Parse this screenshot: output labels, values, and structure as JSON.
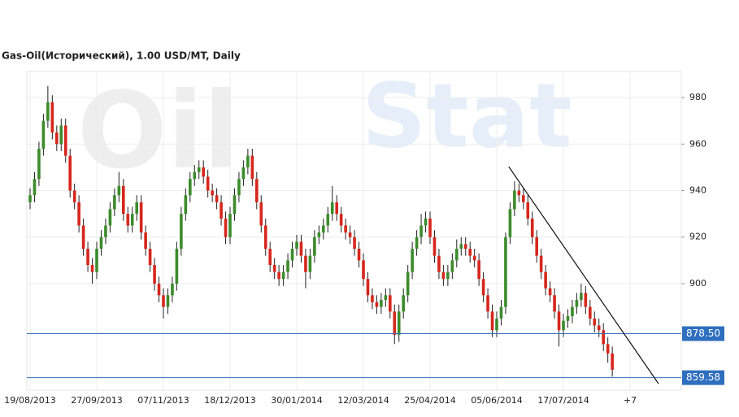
{
  "chart_data": {
    "type": "candlestick",
    "title": "Gas-Oil(Исторический), 1.00 USD/MT, Daily",
    "watermark": [
      "Oil",
      "Stat"
    ],
    "categories": [
      "19/08/2013",
      null,
      null,
      null,
      null,
      null,
      null,
      null,
      null,
      null,
      null,
      null,
      null,
      null,
      null,
      "27/09/2013",
      null,
      null,
      null,
      null,
      null,
      null,
      null,
      null,
      null,
      null,
      null,
      null,
      null,
      null,
      "07/11/2013",
      null,
      null,
      null,
      null,
      null,
      null,
      null,
      null,
      null,
      null,
      null,
      null,
      null,
      null,
      "18/12/2013",
      null,
      null,
      null,
      null,
      null,
      null,
      null,
      null,
      null,
      null,
      null,
      null,
      null,
      null,
      "30/01/2014",
      null,
      null,
      null,
      null,
      null,
      null,
      null,
      null,
      null,
      null,
      null,
      null,
      null,
      null,
      "12/03/2014",
      null,
      null,
      null,
      null,
      null,
      null,
      null,
      null,
      null,
      null,
      null,
      null,
      null,
      null,
      "25/04/2014",
      null,
      null,
      null,
      null,
      null,
      null,
      null,
      null,
      null,
      null,
      null,
      null,
      null,
      null,
      "05/06/2014",
      null,
      null,
      null,
      null,
      null,
      null,
      null,
      null,
      null,
      null,
      null,
      null,
      null,
      null,
      "17/07/2014",
      null,
      null,
      null,
      null,
      null,
      null,
      null,
      null,
      null,
      null,
      null,
      null,
      null,
      null,
      "+7",
      null,
      null,
      null,
      null,
      null,
      null,
      null,
      null,
      null,
      null,
      null
    ],
    "open": [
      935,
      938,
      945,
      958,
      970,
      978,
      965,
      960,
      968,
      955,
      940,
      935,
      925,
      915,
      908,
      905,
      915,
      920,
      925,
      932,
      938,
      942,
      930,
      925,
      930,
      935,
      922,
      915,
      908,
      900,
      895,
      890,
      895,
      900,
      915,
      930,
      938,
      945,
      948,
      950,
      946,
      940,
      938,
      935,
      928,
      920,
      930,
      938,
      945,
      950,
      955,
      945,
      935,
      925,
      915,
      908,
      905,
      902,
      905,
      910,
      915,
      918,
      912,
      905,
      912,
      920,
      922,
      925,
      930,
      935,
      930,
      925,
      922,
      920,
      915,
      910,
      902,
      895,
      892,
      890,
      893,
      895,
      888,
      878,
      888,
      895,
      905,
      915,
      920,
      925,
      928,
      920,
      912,
      905,
      902,
      905,
      910,
      915,
      917,
      915,
      912,
      910,
      902,
      895,
      888,
      880,
      885,
      890,
      920,
      932,
      940,
      938,
      935,
      928,
      920,
      912,
      905,
      898,
      895,
      888,
      880,
      884,
      886,
      890,
      893,
      896,
      890,
      885,
      882,
      880,
      874,
      870,
      null,
      null,
      null,
      null,
      null,
      null,
      null,
      null,
      null,
      null,
      null,
      null,
      null,
      null,
      null
    ],
    "high": [
      941,
      948,
      961,
      973,
      985,
      981,
      968,
      971,
      971,
      958,
      943,
      938,
      928,
      918,
      911,
      918,
      923,
      928,
      935,
      941,
      948,
      945,
      933,
      933,
      938,
      938,
      925,
      918,
      911,
      903,
      898,
      898,
      903,
      918,
      933,
      941,
      948,
      951,
      953,
      953,
      949,
      943,
      941,
      938,
      931,
      933,
      941,
      948,
      953,
      958,
      958,
      948,
      938,
      928,
      918,
      911,
      908,
      908,
      913,
      918,
      921,
      921,
      915,
      915,
      923,
      925,
      928,
      933,
      942,
      938,
      933,
      928,
      925,
      923,
      918,
      913,
      905,
      898,
      895,
      896,
      898,
      898,
      891,
      891,
      898,
      908,
      918,
      923,
      930,
      931,
      931,
      923,
      915,
      908,
      908,
      913,
      919,
      920,
      920,
      918,
      915,
      913,
      905,
      898,
      891,
      888,
      893,
      922,
      935,
      944,
      943,
      941,
      938,
      931,
      923,
      915,
      908,
      901,
      898,
      891,
      887,
      889,
      893,
      896,
      900,
      899,
      893,
      888,
      885,
      883,
      877,
      873,
      null,
      null,
      null,
      null,
      null,
      null,
      null,
      null,
      null,
      null,
      null,
      null,
      null,
      null,
      null
    ],
    "low": [
      932,
      935,
      942,
      955,
      967,
      962,
      957,
      957,
      952,
      937,
      932,
      922,
      912,
      905,
      900,
      902,
      912,
      917,
      922,
      929,
      935,
      927,
      922,
      922,
      927,
      919,
      912,
      905,
      897,
      892,
      885,
      887,
      892,
      897,
      912,
      927,
      935,
      942,
      945,
      943,
      937,
      935,
      932,
      925,
      917,
      917,
      927,
      935,
      942,
      947,
      942,
      932,
      922,
      912,
      905,
      902,
      899,
      899,
      902,
      907,
      912,
      909,
      898,
      902,
      909,
      917,
      919,
      922,
      927,
      927,
      922,
      919,
      917,
      912,
      907,
      899,
      892,
      889,
      887,
      887,
      890,
      885,
      874,
      875,
      885,
      892,
      902,
      912,
      917,
      922,
      917,
      909,
      902,
      899,
      899,
      902,
      907,
      912,
      912,
      909,
      907,
      899,
      892,
      885,
      877,
      877,
      882,
      887,
      917,
      929,
      935,
      932,
      925,
      917,
      909,
      902,
      895,
      892,
      885,
      873,
      877,
      881,
      883,
      887,
      890,
      887,
      882,
      879,
      877,
      871,
      866,
      860,
      null,
      null,
      null,
      null,
      null,
      null,
      null,
      null,
      null,
      null,
      null,
      null,
      null,
      null,
      null
    ],
    "close": [
      938,
      945,
      958,
      970,
      978,
      965,
      960,
      968,
      955,
      940,
      935,
      925,
      915,
      908,
      905,
      915,
      920,
      925,
      932,
      938,
      942,
      930,
      925,
      930,
      935,
      922,
      915,
      908,
      900,
      895,
      890,
      895,
      900,
      915,
      930,
      938,
      945,
      948,
      950,
      946,
      940,
      938,
      935,
      928,
      920,
      930,
      938,
      945,
      950,
      955,
      945,
      935,
      925,
      915,
      908,
      905,
      902,
      905,
      910,
      915,
      918,
      912,
      905,
      912,
      920,
      922,
      925,
      930,
      935,
      930,
      925,
      922,
      920,
      915,
      910,
      902,
      895,
      892,
      890,
      893,
      895,
      888,
      878,
      888,
      895,
      905,
      915,
      920,
      925,
      928,
      920,
      912,
      905,
      902,
      905,
      910,
      915,
      917,
      915,
      912,
      910,
      902,
      895,
      888,
      880,
      885,
      890,
      920,
      932,
      940,
      938,
      935,
      928,
      920,
      912,
      905,
      898,
      895,
      888,
      880,
      884,
      886,
      890,
      893,
      896,
      890,
      885,
      882,
      880,
      874,
      870,
      863,
      null,
      null,
      null,
      null,
      null,
      null,
      null,
      null,
      null,
      null,
      null,
      null,
      null,
      null,
      null
    ],
    "up_color": "#3b8c2a",
    "down_color": "#d7261c",
    "ylim": [
      854.2,
      991.2
    ],
    "yticks": [
      900,
      920,
      940,
      960,
      980
    ],
    "levels": [
      {
        "value": 878.5,
        "label": "878.50"
      },
      {
        "value": 859.58,
        "label": "859.58"
      }
    ],
    "level_color": "#2f6fbf",
    "trendline": {
      "x": [
        107.7,
        141.4
      ],
      "y": [
        950.3,
        857.0
      ]
    },
    "grid": true
  }
}
